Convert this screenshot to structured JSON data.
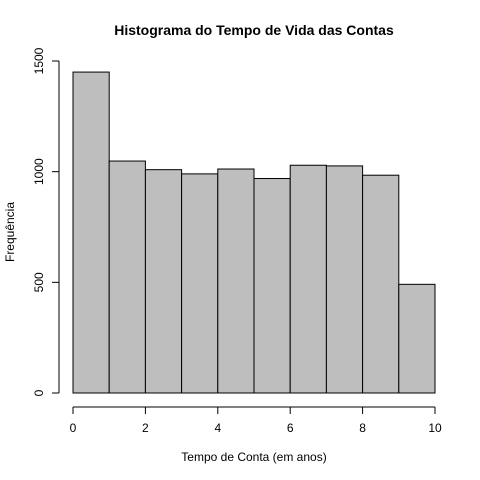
{
  "chart_data": {
    "type": "bar",
    "title": "Histograma do Tempo de Vida das Contas",
    "xlabel": "Tempo de Conta (em anos)",
    "ylabel": "Frequência",
    "bins": [
      {
        "start": 0,
        "end": 1,
        "value": 1450
      },
      {
        "start": 1,
        "end": 2,
        "value": 1048
      },
      {
        "start": 2,
        "end": 3,
        "value": 1009
      },
      {
        "start": 3,
        "end": 4,
        "value": 990
      },
      {
        "start": 4,
        "end": 5,
        "value": 1012
      },
      {
        "start": 5,
        "end": 6,
        "value": 969
      },
      {
        "start": 6,
        "end": 7,
        "value": 1029
      },
      {
        "start": 7,
        "end": 8,
        "value": 1026
      },
      {
        "start": 8,
        "end": 9,
        "value": 984
      },
      {
        "start": 9,
        "end": 10,
        "value": 491
      }
    ],
    "xlim": [
      0,
      10
    ],
    "ylim": [
      0,
      1500
    ],
    "xticks": [
      0,
      2,
      4,
      6,
      8,
      10
    ],
    "yticks": [
      0,
      500,
      1000,
      1500
    ],
    "bar_fill": "#bebebe",
    "bar_stroke": "#000000",
    "grid": false,
    "legend": "none"
  }
}
